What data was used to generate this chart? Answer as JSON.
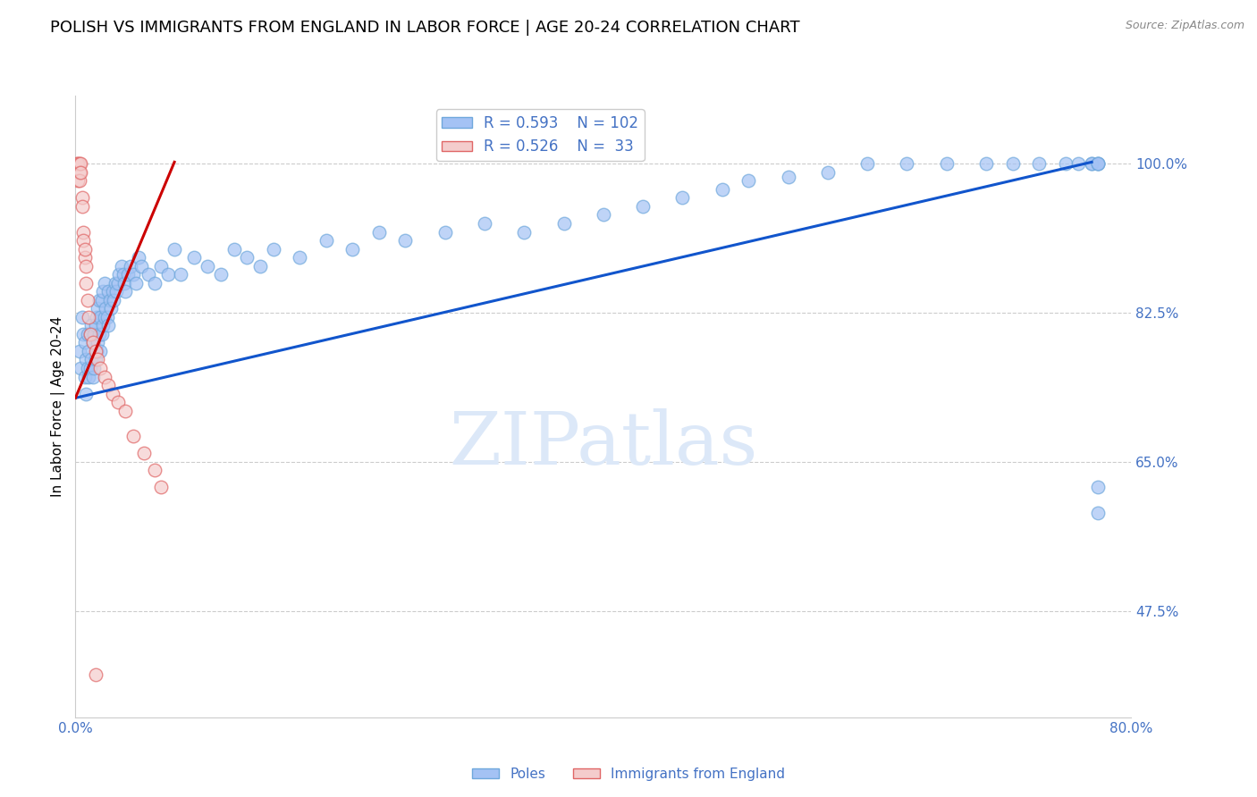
{
  "title": "POLISH VS IMMIGRANTS FROM ENGLAND IN LABOR FORCE | AGE 20-24 CORRELATION CHART",
  "source": "Source: ZipAtlas.com",
  "ylabel": "In Labor Force | Age 20-24",
  "xlim": [
    0.0,
    0.8
  ],
  "ylim": [
    0.35,
    1.08
  ],
  "ytick_positions": [
    0.475,
    0.65,
    0.825,
    1.0
  ],
  "yticklabels": [
    "47.5%",
    "65.0%",
    "82.5%",
    "100.0%"
  ],
  "blue_R": 0.593,
  "blue_N": 102,
  "pink_R": 0.526,
  "pink_N": 33,
  "blue_color": "#a4c2f4",
  "blue_edge_color": "#6fa8dc",
  "pink_color": "#f4cccc",
  "pink_edge_color": "#e06666",
  "blue_line_color": "#1155cc",
  "pink_line_color": "#cc0000",
  "text_color": "#4472c4",
  "watermark_color": "#dce8f8",
  "grid_color": "#cccccc",
  "title_fontsize": 13,
  "label_fontsize": 11,
  "tick_fontsize": 11,
  "blue_line_x0": 0.0,
  "blue_line_x1": 0.77,
  "blue_line_y0": 0.725,
  "blue_line_y1": 1.002,
  "pink_line_x0": 0.0,
  "pink_line_x1": 0.075,
  "pink_line_y0": 0.725,
  "pink_line_y1": 1.002,
  "blue_x": [
    0.003,
    0.004,
    0.005,
    0.006,
    0.007,
    0.007,
    0.008,
    0.008,
    0.009,
    0.009,
    0.01,
    0.01,
    0.011,
    0.011,
    0.012,
    0.012,
    0.013,
    0.013,
    0.014,
    0.014,
    0.015,
    0.015,
    0.016,
    0.016,
    0.017,
    0.017,
    0.018,
    0.018,
    0.019,
    0.019,
    0.02,
    0.02,
    0.021,
    0.021,
    0.022,
    0.022,
    0.023,
    0.024,
    0.025,
    0.025,
    0.026,
    0.027,
    0.028,
    0.029,
    0.03,
    0.031,
    0.032,
    0.033,
    0.035,
    0.036,
    0.037,
    0.038,
    0.04,
    0.042,
    0.044,
    0.046,
    0.048,
    0.05,
    0.055,
    0.06,
    0.065,
    0.07,
    0.075,
    0.08,
    0.09,
    0.1,
    0.11,
    0.12,
    0.13,
    0.14,
    0.15,
    0.17,
    0.19,
    0.21,
    0.23,
    0.25,
    0.28,
    0.31,
    0.34,
    0.37,
    0.4,
    0.43,
    0.46,
    0.49,
    0.51,
    0.54,
    0.57,
    0.6,
    0.63,
    0.66,
    0.69,
    0.71,
    0.73,
    0.75,
    0.76,
    0.77,
    0.77,
    0.775,
    0.775,
    0.775,
    0.775,
    0.775
  ],
  "blue_y": [
    0.78,
    0.76,
    0.82,
    0.8,
    0.75,
    0.79,
    0.73,
    0.77,
    0.76,
    0.8,
    0.75,
    0.78,
    0.76,
    0.8,
    0.77,
    0.81,
    0.75,
    0.79,
    0.76,
    0.8,
    0.77,
    0.81,
    0.78,
    0.82,
    0.79,
    0.83,
    0.8,
    0.84,
    0.78,
    0.82,
    0.8,
    0.84,
    0.81,
    0.85,
    0.82,
    0.86,
    0.83,
    0.82,
    0.81,
    0.85,
    0.84,
    0.83,
    0.85,
    0.84,
    0.86,
    0.85,
    0.86,
    0.87,
    0.88,
    0.87,
    0.86,
    0.85,
    0.87,
    0.88,
    0.87,
    0.86,
    0.89,
    0.88,
    0.87,
    0.86,
    0.88,
    0.87,
    0.9,
    0.87,
    0.89,
    0.88,
    0.87,
    0.9,
    0.89,
    0.88,
    0.9,
    0.89,
    0.91,
    0.9,
    0.92,
    0.91,
    0.92,
    0.93,
    0.92,
    0.93,
    0.94,
    0.95,
    0.96,
    0.97,
    0.98,
    0.985,
    0.99,
    1.0,
    1.0,
    1.0,
    1.0,
    1.0,
    1.0,
    1.0,
    1.0,
    1.0,
    1.0,
    1.0,
    1.0,
    1.0,
    0.62,
    0.59
  ],
  "pink_x": [
    0.001,
    0.002,
    0.002,
    0.003,
    0.003,
    0.003,
    0.004,
    0.004,
    0.005,
    0.005,
    0.006,
    0.006,
    0.007,
    0.007,
    0.008,
    0.008,
    0.009,
    0.01,
    0.011,
    0.013,
    0.015,
    0.017,
    0.019,
    0.022,
    0.025,
    0.028,
    0.032,
    0.038,
    0.044,
    0.052,
    0.06,
    0.065,
    0.015
  ],
  "pink_y": [
    1.0,
    1.0,
    0.98,
    1.0,
    0.99,
    0.98,
    1.0,
    0.99,
    0.96,
    0.95,
    0.92,
    0.91,
    0.89,
    0.9,
    0.88,
    0.86,
    0.84,
    0.82,
    0.8,
    0.79,
    0.78,
    0.77,
    0.76,
    0.75,
    0.74,
    0.73,
    0.72,
    0.71,
    0.68,
    0.66,
    0.64,
    0.62,
    0.4
  ]
}
